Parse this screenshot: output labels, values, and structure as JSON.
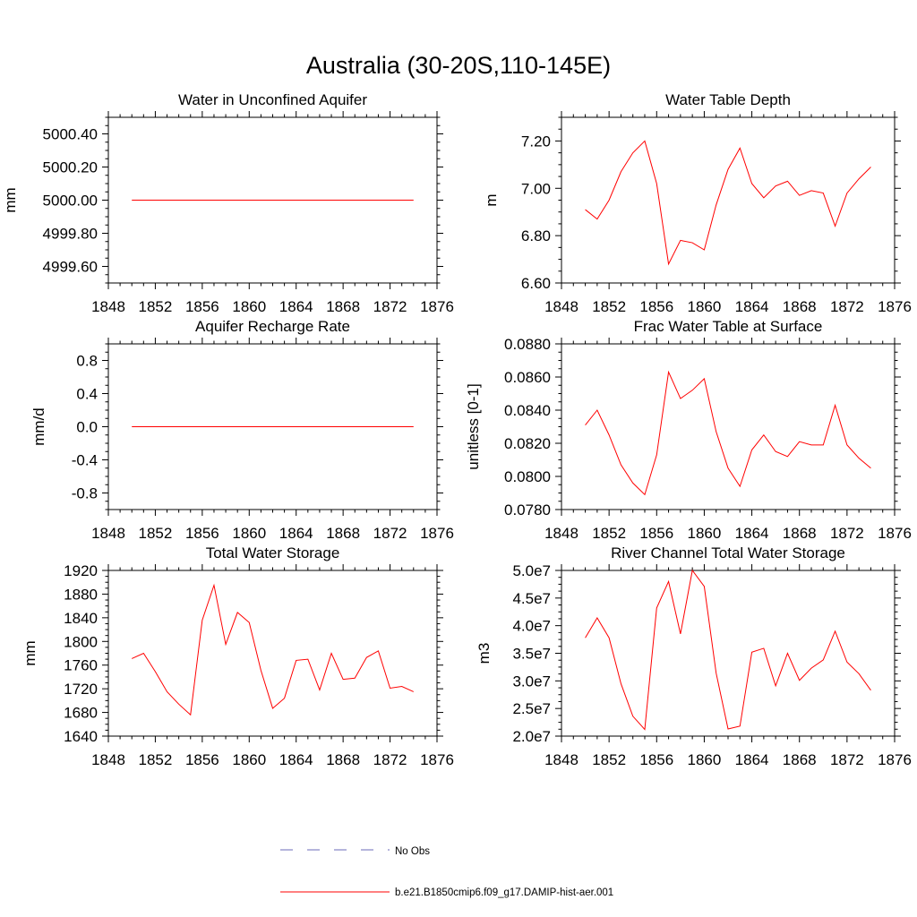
{
  "page_title": "Australia (30-20S,110-145E)",
  "legend": {
    "obs_label": "No Obs",
    "obs_color": "#6b6bb8",
    "model_label": "b.e21.B1850cmip6.f09_g17.DAMIP-hist-aer.001",
    "model_color": "#ff0000"
  },
  "chart_data": [
    {
      "type": "line",
      "title": "Water in Unconfined Aquifer",
      "ylabel": "mm",
      "xlim": [
        1848,
        1876
      ],
      "xticks": [
        "1848",
        "1852",
        "1856",
        "1860",
        "1864",
        "1868",
        "1872",
        "1876"
      ],
      "ylim": [
        4999.5,
        5000.5
      ],
      "yticks": [
        {
          "v": 4999.6,
          "label": "4999.60"
        },
        {
          "v": 4999.8,
          "label": "4999.80"
        },
        {
          "v": 5000.0,
          "label": "5000.00"
        },
        {
          "v": 5000.2,
          "label": "5000.20"
        },
        {
          "v": 5000.4,
          "label": "5000.40"
        }
      ],
      "x": [
        1850,
        1874
      ],
      "series": [
        {
          "values": [
            5000.0,
            5000.0
          ]
        }
      ]
    },
    {
      "type": "line",
      "title": "Water Table Depth",
      "ylabel": "m",
      "xlim": [
        1848,
        1876
      ],
      "xticks": [
        "1848",
        "1852",
        "1856",
        "1860",
        "1864",
        "1868",
        "1872",
        "1876"
      ],
      "ylim": [
        6.6,
        7.3
      ],
      "yticks": [
        {
          "v": 6.6,
          "label": "6.60"
        },
        {
          "v": 6.8,
          "label": "6.80"
        },
        {
          "v": 7.0,
          "label": "7.00"
        },
        {
          "v": 7.2,
          "label": "7.20"
        }
      ],
      "x": [
        1850,
        1851,
        1852,
        1853,
        1854,
        1855,
        1856,
        1857,
        1858,
        1859,
        1860,
        1861,
        1862,
        1863,
        1864,
        1865,
        1866,
        1867,
        1868,
        1869,
        1870,
        1871,
        1872,
        1873,
        1874
      ],
      "series": [
        {
          "values": [
            6.91,
            6.87,
            6.95,
            7.07,
            7.15,
            7.2,
            7.02,
            6.68,
            6.78,
            6.77,
            6.74,
            6.93,
            7.08,
            7.17,
            7.02,
            6.96,
            7.01,
            7.03,
            6.97,
            6.99,
            6.98,
            6.84,
            6.98,
            7.04,
            7.09
          ]
        }
      ]
    },
    {
      "type": "line",
      "title": "Aquifer Recharge Rate",
      "ylabel": "mm/d",
      "xlim": [
        1848,
        1876
      ],
      "xticks": [
        "1848",
        "1852",
        "1856",
        "1860",
        "1864",
        "1868",
        "1872",
        "1876"
      ],
      "ylim": [
        -1.0,
        1.0
      ],
      "yticks": [
        {
          "v": -0.8,
          "label": "-0.8"
        },
        {
          "v": -0.4,
          "label": "-0.4"
        },
        {
          "v": 0.0,
          "label": "0.0"
        },
        {
          "v": 0.4,
          "label": "0.4"
        },
        {
          "v": 0.8,
          "label": "0.8"
        }
      ],
      "x": [
        1850,
        1874
      ],
      "series": [
        {
          "values": [
            0.0,
            0.0
          ]
        }
      ]
    },
    {
      "type": "line",
      "title": "Frac Water Table at Surface",
      "ylabel": "unitless [0-1]",
      "xlim": [
        1848,
        1876
      ],
      "xticks": [
        "1848",
        "1852",
        "1856",
        "1860",
        "1864",
        "1868",
        "1872",
        "1876"
      ],
      "ylim": [
        0.078,
        0.088
      ],
      "yticks": [
        {
          "v": 0.078,
          "label": "0.0780"
        },
        {
          "v": 0.08,
          "label": "0.0800"
        },
        {
          "v": 0.082,
          "label": "0.0820"
        },
        {
          "v": 0.084,
          "label": "0.0840"
        },
        {
          "v": 0.086,
          "label": "0.0860"
        },
        {
          "v": 0.088,
          "label": "0.0880"
        }
      ],
      "x": [
        1850,
        1851,
        1852,
        1853,
        1854,
        1855,
        1856,
        1857,
        1858,
        1859,
        1860,
        1861,
        1862,
        1863,
        1864,
        1865,
        1866,
        1867,
        1868,
        1869,
        1870,
        1871,
        1872,
        1873,
        1874
      ],
      "series": [
        {
          "values": [
            0.0831,
            0.084,
            0.0825,
            0.0807,
            0.0796,
            0.0789,
            0.0813,
            0.0863,
            0.0847,
            0.0852,
            0.0859,
            0.0827,
            0.0805,
            0.0794,
            0.0816,
            0.0825,
            0.0815,
            0.0812,
            0.0821,
            0.0819,
            0.0819,
            0.0843,
            0.0819,
            0.0811,
            0.0805
          ]
        }
      ]
    },
    {
      "type": "line",
      "title": "Total Water Storage",
      "ylabel": "mm",
      "xlim": [
        1848,
        1876
      ],
      "xticks": [
        "1848",
        "1852",
        "1856",
        "1860",
        "1864",
        "1868",
        "1872",
        "1876"
      ],
      "ylim": [
        1640,
        1920
      ],
      "yticks": [
        {
          "v": 1640,
          "label": "1640"
        },
        {
          "v": 1680,
          "label": "1680"
        },
        {
          "v": 1720,
          "label": "1720"
        },
        {
          "v": 1760,
          "label": "1760"
        },
        {
          "v": 1800,
          "label": "1800"
        },
        {
          "v": 1840,
          "label": "1840"
        },
        {
          "v": 1880,
          "label": "1880"
        },
        {
          "v": 1920,
          "label": "1920"
        }
      ],
      "x": [
        1850,
        1851,
        1852,
        1853,
        1854,
        1855,
        1856,
        1857,
        1858,
        1859,
        1860,
        1861,
        1862,
        1863,
        1864,
        1865,
        1866,
        1867,
        1868,
        1869,
        1870,
        1871,
        1872,
        1873,
        1874
      ],
      "series": [
        {
          "values": [
            1771,
            1780,
            1749,
            1715,
            1694,
            1676,
            1836,
            1895,
            1795,
            1849,
            1832,
            1751,
            1687,
            1704,
            1768,
            1770,
            1718,
            1780,
            1736,
            1738,
            1773,
            1784,
            1721,
            1724,
            1715
          ]
        }
      ]
    },
    {
      "type": "line",
      "title": "River Channel Total Water Storage",
      "ylabel": "m3",
      "xlim": [
        1848,
        1876
      ],
      "xticks": [
        "1848",
        "1852",
        "1856",
        "1860",
        "1864",
        "1868",
        "1872",
        "1876"
      ],
      "ylim": [
        20000000,
        50000000
      ],
      "yticks": [
        {
          "v": 20000000,
          "label": "2.0e7"
        },
        {
          "v": 25000000,
          "label": "2.5e7"
        },
        {
          "v": 30000000,
          "label": "3.0e7"
        },
        {
          "v": 35000000,
          "label": "3.5e7"
        },
        {
          "v": 40000000,
          "label": "4.0e7"
        },
        {
          "v": 45000000,
          "label": "4.5e7"
        },
        {
          "v": 50000000,
          "label": "5.0e7"
        }
      ],
      "x": [
        1850,
        1851,
        1852,
        1853,
        1854,
        1855,
        1856,
        1857,
        1858,
        1859,
        1860,
        1861,
        1862,
        1863,
        1864,
        1865,
        1866,
        1867,
        1868,
        1869,
        1870,
        1871,
        1872,
        1873,
        1874
      ],
      "series": [
        {
          "values": [
            37800000,
            41400000,
            37800000,
            29500000,
            23600000,
            21200000,
            43200000,
            48000000,
            38500000,
            50000000,
            47100000,
            31400000,
            21300000,
            21800000,
            35200000,
            35900000,
            29100000,
            35000000,
            30100000,
            32300000,
            33800000,
            39000000,
            33400000,
            31300000,
            28300000
          ]
        }
      ]
    }
  ]
}
